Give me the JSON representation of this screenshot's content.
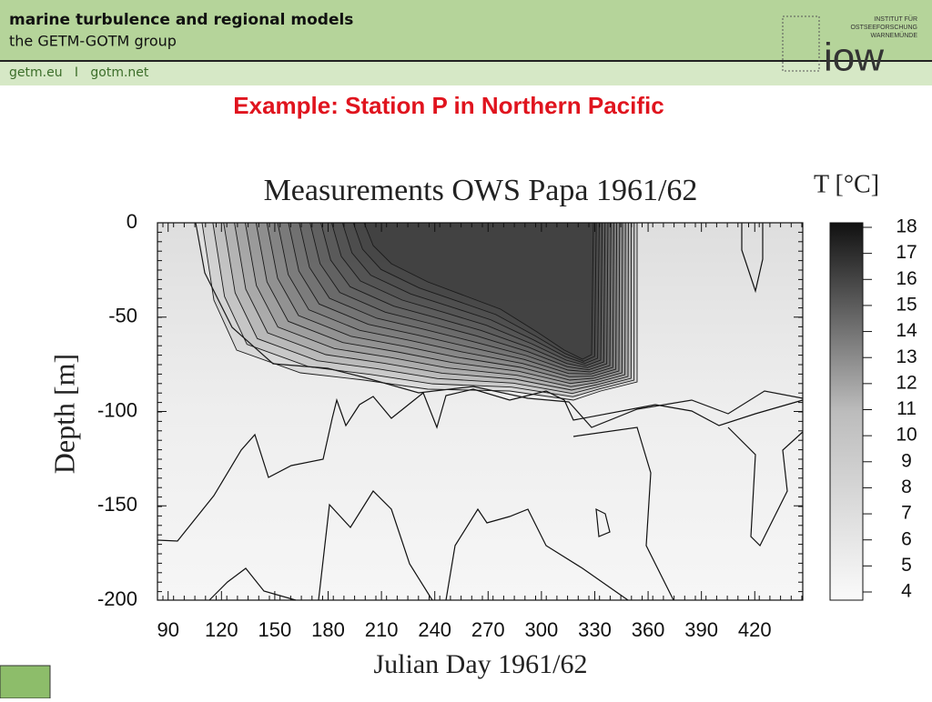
{
  "header": {
    "title": "marine turbulence and regional models",
    "subtitle": "the GETM-GOTM group",
    "links": "getm.eu   I   gotm.net",
    "logo_text": [
      "INSTITUT FÜR",
      "OSTSEEFORSCHUNG",
      "WARNEMÜNDE"
    ],
    "logo_mark": "iow"
  },
  "slide_title": "Example: Station P in Northern Pacific",
  "chart_data": {
    "type": "contour",
    "title": "Measurements OWS Papa 1961/62",
    "x_label": "Julian Day 1961/62",
    "y_label": "Depth [m]",
    "xlim": [
      84,
      447
    ],
    "xticks": [
      90,
      120,
      150,
      180,
      210,
      240,
      270,
      300,
      330,
      360,
      390,
      420
    ],
    "ylim": [
      -200,
      0
    ],
    "yticks": [
      0,
      -50,
      -100,
      -150,
      -200
    ],
    "colorbar_label": "T [°C]",
    "clim": [
      4,
      18
    ],
    "cticks": [
      4,
      5,
      6,
      7,
      8,
      9,
      10,
      11,
      12,
      13,
      14,
      15,
      16,
      17,
      18
    ]
  }
}
